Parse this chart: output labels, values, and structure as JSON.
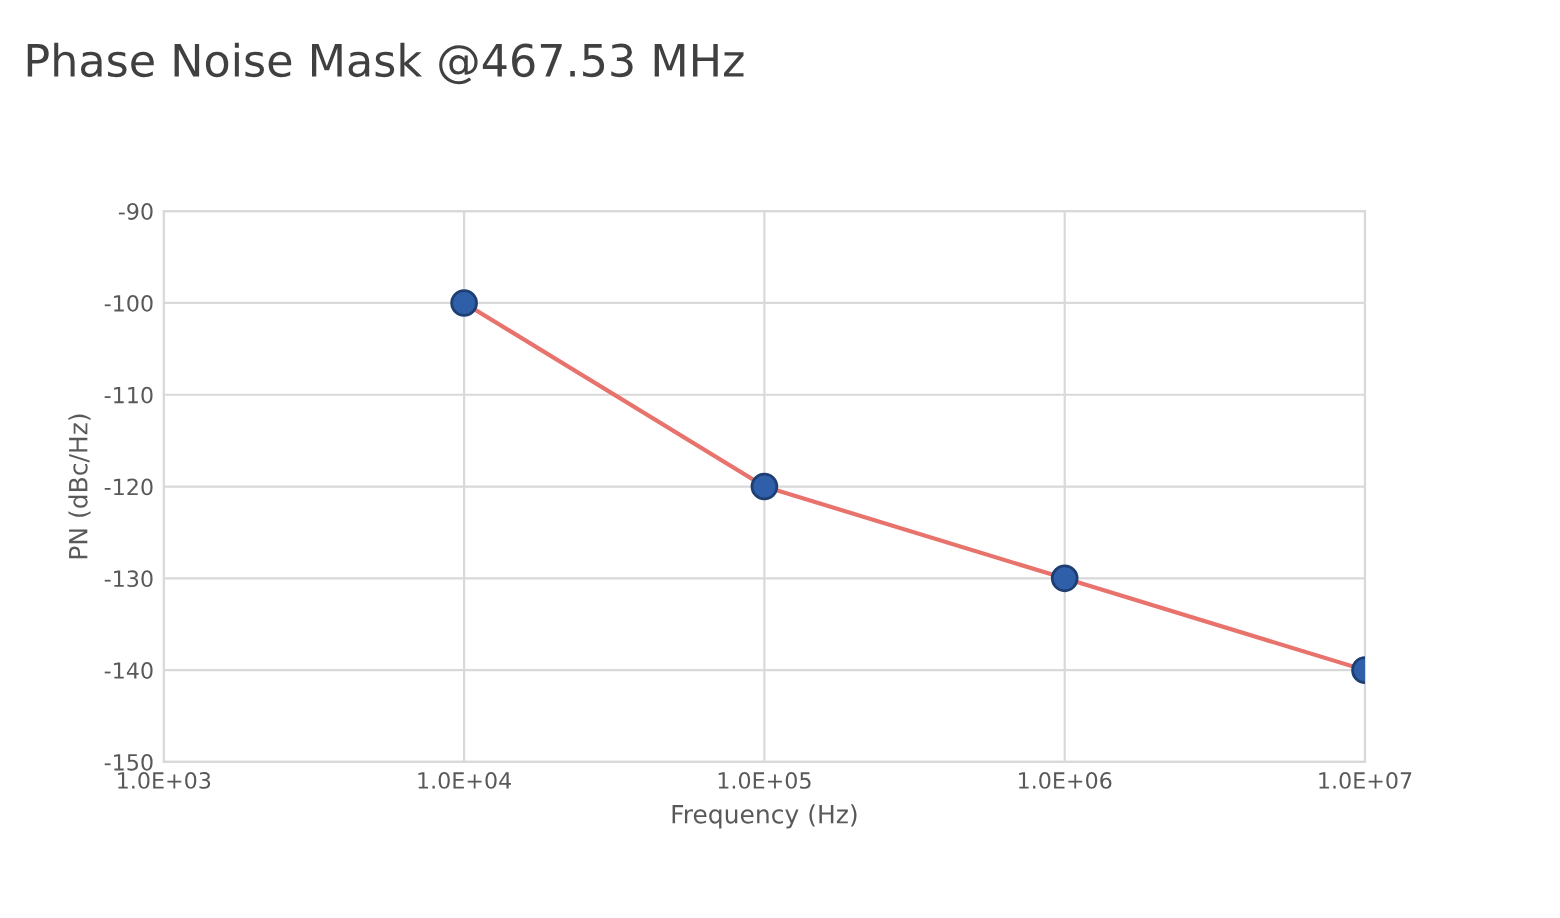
{
  "chart_data": {
    "type": "line",
    "title": "Phase Noise Mask @467.53 MHz",
    "xlabel": "Frequency (Hz)",
    "ylabel": "PN (dBc/Hz)",
    "log": "x",
    "x": [
      10000,
      100000,
      1000000,
      10000000
    ],
    "series": [
      {
        "color": "#e8736c",
        "colors": [
          "#2e5fa8",
          "#2e5fa8",
          "#2e5fa8",
          "#2e5fa8"
        ],
        "values": [
          -100,
          -120,
          -130,
          -140
        ]
      }
    ],
    "xlim": [
      1000,
      10000000
    ],
    "xticks": [
      {
        "value": 1000,
        "label": "1.0E+03"
      },
      {
        "value": 10000,
        "label": "1.0E+04"
      },
      {
        "value": 100000,
        "label": "1.0E+05"
      },
      {
        "value": 1000000,
        "label": "1.0E+06"
      },
      {
        "value": 10000000,
        "label": "1.0E+07"
      }
    ],
    "ylim": [
      -150,
      -90
    ],
    "yticks": [
      {
        "value": -150,
        "label": "-150"
      },
      {
        "value": -140,
        "label": "-140"
      },
      {
        "value": -130,
        "label": "-130"
      },
      {
        "value": -120,
        "label": "-120"
      },
      {
        "value": -110,
        "label": "-110"
      },
      {
        "value": -100,
        "label": "-100"
      },
      {
        "value": -90,
        "label": "-90"
      }
    ],
    "grid": true,
    "marker": "circle",
    "line_style": "solid"
  }
}
